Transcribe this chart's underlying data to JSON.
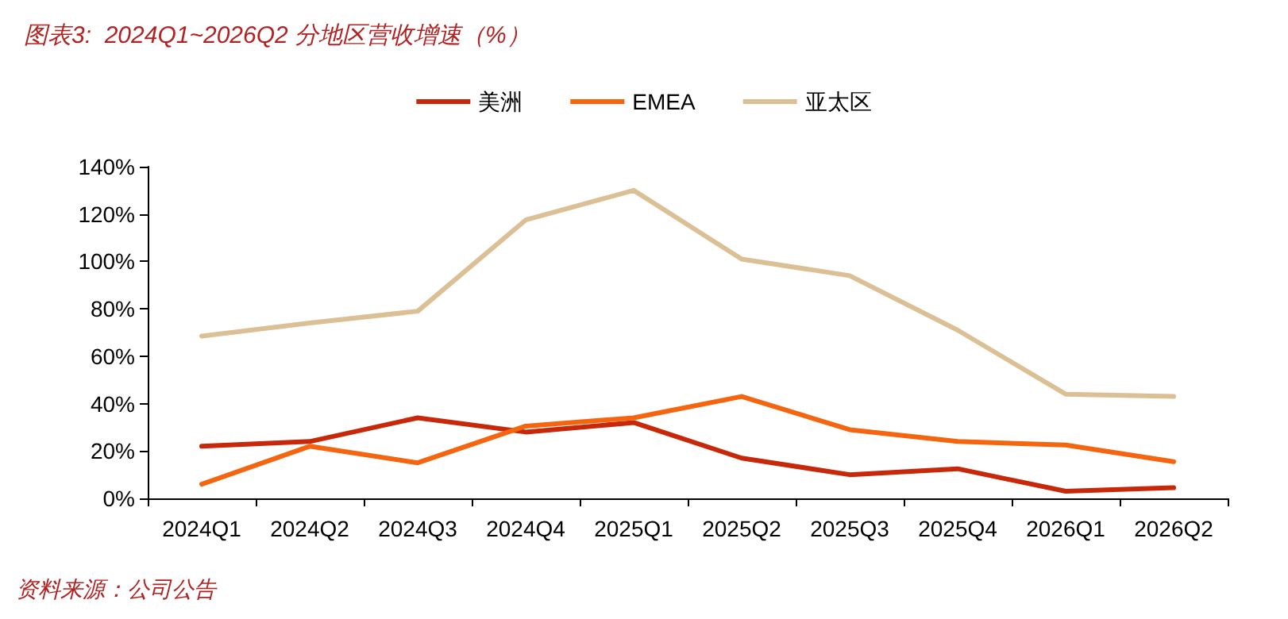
{
  "chart_data": {
    "type": "line",
    "title": "图表3:  2024Q1~2026Q2 分地区营收增速（%）",
    "annotations": [
      "资料来源：公司公告"
    ],
    "categories": [
      "2024Q1",
      "2024Q2",
      "2024Q3",
      "2024Q4",
      "2025Q1",
      "2025Q2",
      "2025Q3",
      "2025Q4",
      "2026Q1",
      "2026Q2"
    ],
    "series": [
      {
        "name": "美洲",
        "color": "#c8280a",
        "values": [
          22,
          24,
          34,
          28,
          32,
          17,
          10,
          12.5,
          3,
          4.5
        ]
      },
      {
        "name": "EMEA",
        "color": "#f5650f",
        "values": [
          6,
          22,
          15,
          30.5,
          34,
          43,
          29,
          24,
          22.5,
          15.5
        ]
      },
      {
        "name": "亚太区",
        "color": "#dcc095",
        "values": [
          68.5,
          74,
          79,
          117.5,
          130,
          101,
          94,
          71,
          44,
          43
        ]
      }
    ],
    "ylim": [
      0,
      140
    ],
    "yticks": [
      {
        "value": 0,
        "label": "0%"
      },
      {
        "value": 20,
        "label": "20%"
      },
      {
        "value": 40,
        "label": "40%"
      },
      {
        "value": 60,
        "label": "60%"
      },
      {
        "value": 80,
        "label": "80%"
      },
      {
        "value": 100,
        "label": "100%"
      },
      {
        "value": 120,
        "label": "120%"
      },
      {
        "value": 140,
        "label": "140%"
      }
    ],
    "grid": false,
    "legend": "top",
    "marker": "none",
    "line_style": "solid"
  }
}
